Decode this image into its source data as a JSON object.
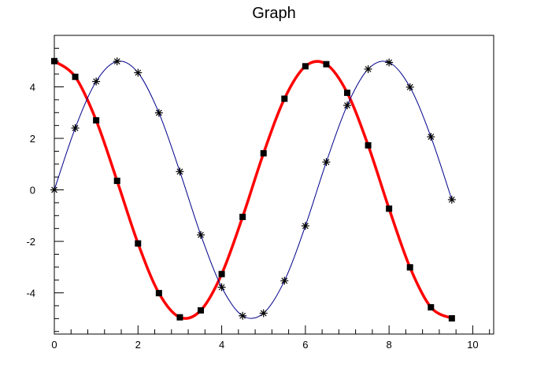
{
  "chart_data": {
    "type": "line",
    "title": "Graph",
    "xlabel": "",
    "ylabel": "",
    "xlim": [
      0,
      10.5
    ],
    "ylim": [
      -5.6,
      6
    ],
    "grid": false,
    "x_ticks": [
      0,
      2,
      4,
      6,
      8,
      10
    ],
    "x_tick_labels": [
      "0",
      "2",
      "4",
      "6",
      "8",
      "10"
    ],
    "y_ticks": [
      -4,
      -2,
      0,
      2,
      4
    ],
    "y_tick_labels": [
      "-4",
      "-2",
      "0",
      "2",
      "4"
    ],
    "series": [
      {
        "color": "#ff0000",
        "line_style": "thick",
        "marker": "square",
        "marker_color": "#000000",
        "x": [
          0,
          0.5,
          1,
          1.5,
          2,
          2.5,
          3,
          3.5,
          4,
          4.5,
          5,
          5.5,
          6,
          6.5,
          7,
          7.5,
          8,
          8.5,
          9,
          9.5
        ],
        "y": [
          5.0,
          4.39,
          2.7,
          0.35,
          -2.08,
          -4.01,
          -4.95,
          -4.68,
          -3.27,
          -1.05,
          1.42,
          3.54,
          4.8,
          4.88,
          3.77,
          1.73,
          -0.73,
          -3.01,
          -4.56,
          -4.99
        ]
      },
      {
        "color": "#00008b",
        "line_style": "thin",
        "marker": "star",
        "marker_color": "#000000",
        "x": [
          0,
          0.5,
          1,
          1.5,
          2,
          2.5,
          3,
          3.5,
          4,
          4.5,
          5,
          5.5,
          6,
          6.5,
          7,
          7.5,
          8,
          8.5,
          9,
          9.5
        ],
        "y": [
          0,
          2.4,
          4.21,
          4.99,
          4.55,
          2.99,
          0.71,
          -1.75,
          -3.78,
          -4.89,
          -4.79,
          -3.53,
          -1.4,
          1.08,
          3.28,
          4.69,
          4.95,
          3.99,
          2.06,
          -0.38
        ]
      }
    ]
  }
}
